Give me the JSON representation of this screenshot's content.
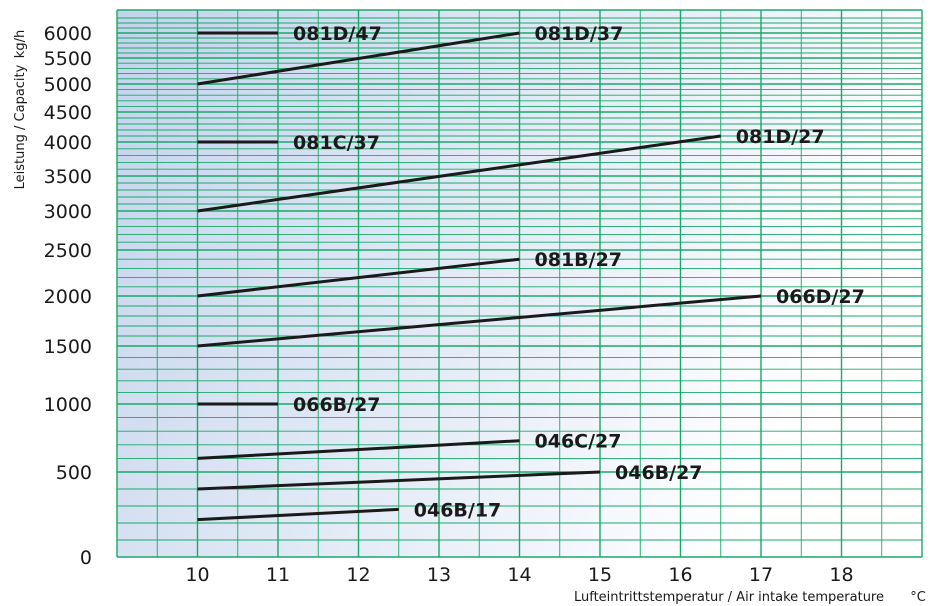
{
  "chart_data": {
    "type": "line",
    "title": "",
    "xlabel": "Lufteintrittstemperatur / Air intake temperature",
    "xunit": "°C",
    "ylabel": "Leistung / Capacity",
    "yunit": "kg/h",
    "xlim": [
      9,
      19
    ],
    "x_ticks": [
      10,
      11,
      12,
      13,
      14,
      15,
      16,
      17,
      18
    ],
    "y_ticks": [
      0,
      500,
      1000,
      1500,
      2000,
      2500,
      3000,
      3500,
      4000,
      4500,
      5000,
      5500,
      6000
    ],
    "grid": true,
    "colors": {
      "grid": "#1aa86a",
      "line": "#1a1a1a",
      "bg_left": "#c3d3ec",
      "bg_right": "#ffffff"
    },
    "series": [
      {
        "name": "081D/47",
        "x": [
          10,
          11
        ],
        "y": [
          6000,
          6000
        ]
      },
      {
        "name": "081D/37",
        "x": [
          10,
          14
        ],
        "y": [
          5000,
          6000
        ]
      },
      {
        "name": "081C/37",
        "x": [
          10,
          11
        ],
        "y": [
          4000,
          4000
        ]
      },
      {
        "name": "081D/27",
        "x": [
          10,
          16.5
        ],
        "y": [
          3000,
          4100
        ]
      },
      {
        "name": "081B/27",
        "x": [
          10,
          14
        ],
        "y": [
          2000,
          2400
        ]
      },
      {
        "name": "066D/27",
        "x": [
          10,
          17
        ],
        "y": [
          1500,
          2000
        ]
      },
      {
        "name": "066B/27",
        "x": [
          10,
          11
        ],
        "y": [
          1000,
          1000
        ]
      },
      {
        "name": "046C/27",
        "x": [
          10,
          14
        ],
        "y": [
          600,
          730
        ]
      },
      {
        "name": "046B/27",
        "x": [
          10,
          15
        ],
        "y": [
          400,
          500
        ]
      },
      {
        "name": "046B/17",
        "x": [
          10,
          12.5
        ],
        "y": [
          220,
          280
        ]
      }
    ]
  }
}
